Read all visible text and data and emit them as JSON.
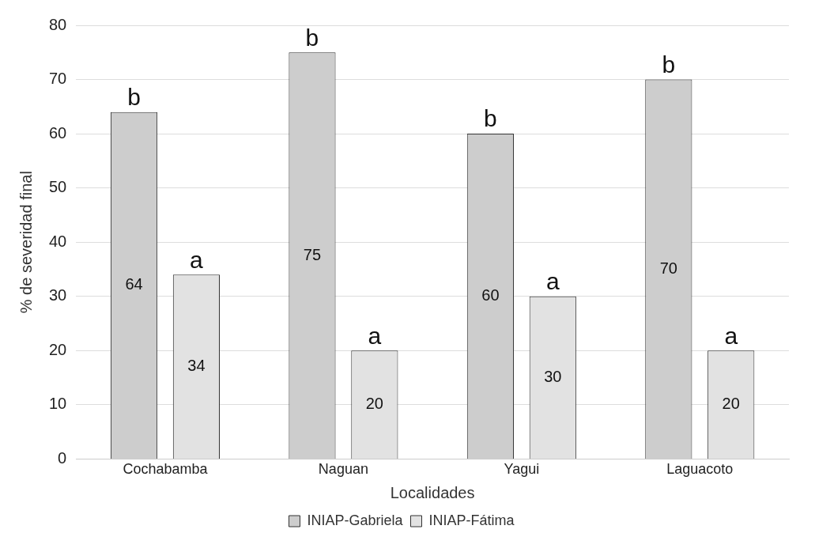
{
  "chart_data": {
    "type": "bar",
    "xlabel": "Localidades",
    "ylabel": "% de severidad final",
    "categories": [
      "Cochabamba",
      "Naguan",
      "Yagui",
      "Laguacoto"
    ],
    "series": [
      {
        "name": "INIAP-Gabriela",
        "color": "#cdcdcd",
        "values": [
          64,
          75,
          60,
          70
        ]
      },
      {
        "name": "INIAP-Fátima",
        "color": "#e2e2e2",
        "values": [
          34,
          20,
          30,
          20
        ]
      }
    ],
    "ylim": [
      0,
      80
    ],
    "yticks": [
      0,
      10,
      20,
      30,
      40,
      50,
      60,
      70,
      80
    ],
    "grid": "y",
    "legend": "bottom",
    "data_labels": true,
    "annotations": [
      "b",
      "a",
      "b",
      "a",
      "b",
      "a",
      "b",
      "a"
    ]
  }
}
